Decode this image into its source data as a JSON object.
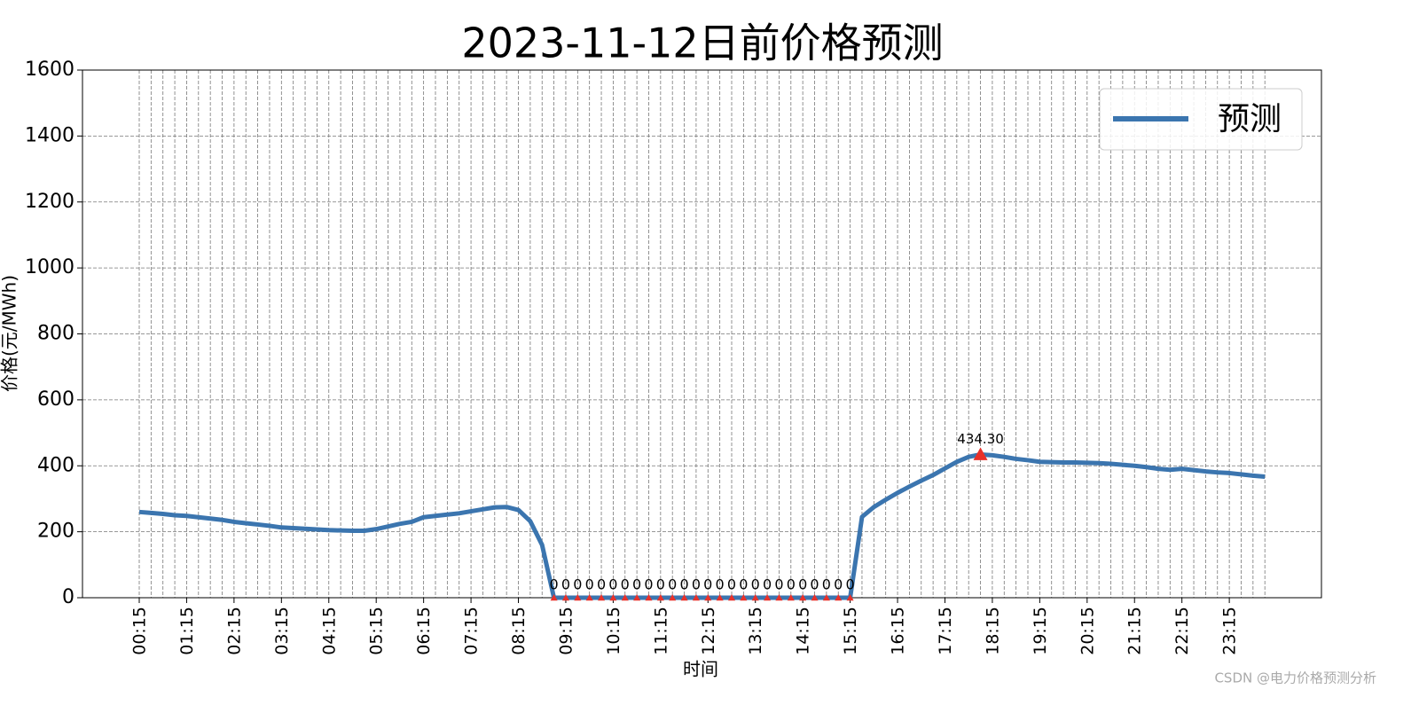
{
  "chart_data": {
    "type": "line",
    "title": "2023-11-12日前价格预测",
    "xlabel": "时间",
    "ylabel": "价格(元/MWh)",
    "watermark": "CSDN @电力价格预测分析",
    "categories": [
      "00:15",
      null,
      null,
      null,
      "01:15",
      null,
      null,
      null,
      "02:15",
      null,
      null,
      null,
      "03:15",
      null,
      null,
      null,
      "04:15",
      null,
      null,
      null,
      "05:15",
      null,
      null,
      null,
      "06:15",
      null,
      null,
      null,
      "07:15",
      null,
      null,
      null,
      "08:15",
      null,
      null,
      null,
      "09:15",
      null,
      null,
      null,
      "10:15",
      null,
      null,
      null,
      "11:15",
      null,
      null,
      null,
      "12:15",
      null,
      null,
      null,
      "13:15",
      null,
      null,
      null,
      "14:15",
      null,
      null,
      null,
      "15:15",
      null,
      null,
      null,
      "16:15",
      null,
      null,
      null,
      "17:15",
      null,
      null,
      null,
      "18:15",
      null,
      null,
      null,
      "19:15",
      null,
      null,
      null,
      "20:15",
      null,
      null,
      null,
      "21:15",
      null,
      null,
      null,
      "22:15",
      null,
      null,
      null,
      "23:15",
      null,
      null,
      null
    ],
    "series": [
      {
        "name": "预测",
        "color": "#3b75af",
        "values": [
          260,
          257,
          254,
          250,
          248,
          244,
          240,
          236,
          230,
          226,
          222,
          218,
          213,
          211,
          209,
          207,
          205,
          204,
          203,
          203,
          208,
          216,
          224,
          230,
          244,
          248,
          252,
          256,
          262,
          268,
          274,
          275,
          266,
          232,
          160,
          0,
          0,
          0,
          0,
          0,
          0,
          0,
          0,
          0,
          0,
          0,
          0,
          0,
          0,
          0,
          0,
          0,
          0,
          0,
          0,
          0,
          0,
          0,
          0,
          0,
          0,
          245,
          275,
          297,
          318,
          337,
          355,
          372,
          392,
          412,
          427,
          434.3,
          432,
          427,
          421,
          417,
          412,
          411,
          410,
          410,
          409,
          408,
          406,
          403,
          400,
          396,
          391,
          388,
          391,
          387,
          383,
          380,
          378,
          374,
          370,
          367
        ],
        "value_labels": [
          null,
          null,
          null,
          null,
          null,
          null,
          null,
          null,
          null,
          null,
          null,
          null,
          null,
          null,
          null,
          null,
          null,
          null,
          null,
          null,
          null,
          null,
          null,
          null,
          null,
          null,
          null,
          null,
          null,
          null,
          null,
          null,
          null,
          null,
          null,
          "0",
          "0",
          "0",
          "0",
          "0",
          "0",
          "0",
          "0",
          "0",
          "0",
          "0",
          "0",
          "0",
          "0",
          "0",
          "0",
          "0",
          "0",
          "0",
          "0",
          "0",
          "0",
          "0",
          "0",
          "0",
          "0",
          null,
          null,
          null,
          null,
          null,
          null,
          null,
          null,
          null,
          null,
          "434.30",
          null,
          null,
          null,
          null,
          null,
          null,
          null,
          null,
          null,
          null,
          null,
          null,
          null,
          null,
          null,
          null,
          null,
          null,
          null,
          null,
          null,
          null,
          null,
          null
        ],
        "marker_color": "#e8312a"
      }
    ],
    "ylim": [
      0,
      1600
    ],
    "yticks": [
      0,
      200,
      400,
      600,
      800,
      1000,
      1200,
      1400,
      1600
    ],
    "grid": true,
    "legend": "upper right"
  }
}
